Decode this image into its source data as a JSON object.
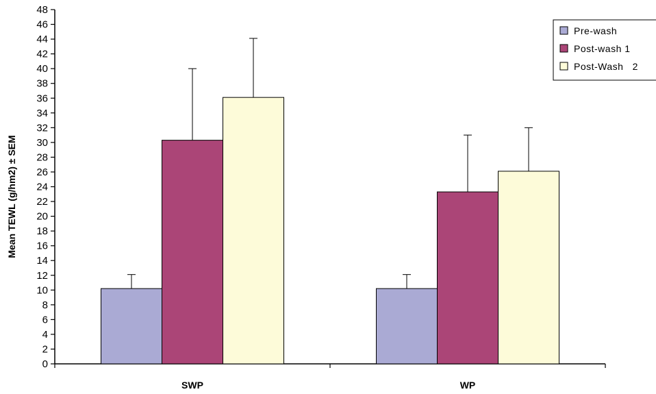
{
  "chart_data": {
    "type": "bar",
    "categories": [
      "SWP",
      "WP"
    ],
    "series": [
      {
        "name": "Pre-wash",
        "values": [
          10.2,
          10.2
        ],
        "errors": [
          1.9,
          1.9
        ],
        "color": "#aaaad4"
      },
      {
        "name": "Post-wash 1",
        "values": [
          30.3,
          23.3
        ],
        "errors": [
          9.7,
          7.7
        ],
        "color": "#ab4577"
      },
      {
        "name": "Post-Wash   2",
        "values": [
          36.1,
          26.1
        ],
        "errors": [
          8.0,
          5.9
        ],
        "color": "#fdfbd9"
      }
    ],
    "ylabel": "Mean TEWL (g/hm2) ± SEM",
    "xlabel": "",
    "ylim": [
      0,
      48
    ],
    "ytick_step": 2,
    "grid": false,
    "legend_position": "top-right"
  }
}
